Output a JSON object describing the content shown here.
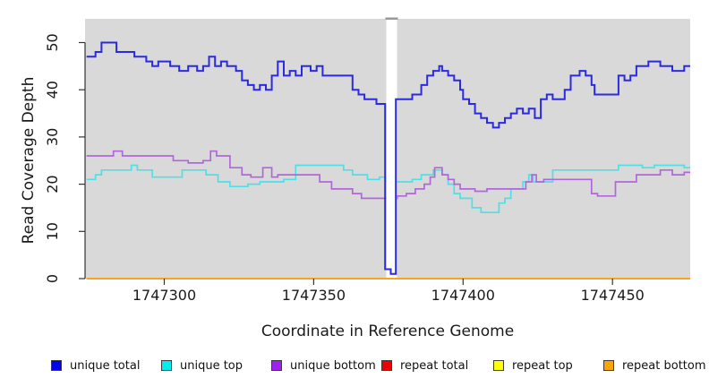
{
  "chart_data": {
    "type": "line",
    "step": "after",
    "title": "",
    "xlabel": "Coordinate in Reference Genome",
    "ylabel": "Read Coverage Depth",
    "xlim": [
      1747273.5,
      1747476
    ],
    "ylim": [
      0,
      55
    ],
    "x_ticks": [
      1747300,
      1747350,
      1747400,
      1747450
    ],
    "y_ticks": [
      0,
      10,
      20,
      30,
      40,
      50
    ],
    "grid": "off",
    "plot_bg": "#d9d9d9",
    "axis_color": "#333333",
    "legend_position": "bottom",
    "gap_band": {
      "from": 1747374.3,
      "to": 1747377.9,
      "fill": "#ffffff",
      "cap_color": "#999999"
    },
    "series": [
      {
        "name": "unique total",
        "line_color": "#2a2ae2",
        "swatch_color": "#0000ee",
        "width": 2,
        "points": [
          [
            1747274,
            47
          ],
          [
            1747277,
            48
          ],
          [
            1747279,
            50
          ],
          [
            1747284,
            48
          ],
          [
            1747290,
            47
          ],
          [
            1747294,
            46
          ],
          [
            1747296,
            45
          ],
          [
            1747298,
            46
          ],
          [
            1747302,
            45
          ],
          [
            1747305,
            44
          ],
          [
            1747308,
            45
          ],
          [
            1747311,
            44
          ],
          [
            1747313,
            45
          ],
          [
            1747315,
            47
          ],
          [
            1747317,
            45
          ],
          [
            1747319,
            46
          ],
          [
            1747321,
            45
          ],
          [
            1747324,
            44
          ],
          [
            1747326,
            42
          ],
          [
            1747328,
            41
          ],
          [
            1747330,
            40
          ],
          [
            1747332,
            41
          ],
          [
            1747334,
            40
          ],
          [
            1747336,
            43
          ],
          [
            1747338,
            46
          ],
          [
            1747340,
            43
          ],
          [
            1747342,
            44
          ],
          [
            1747344,
            43
          ],
          [
            1747346,
            45
          ],
          [
            1747349,
            44
          ],
          [
            1747351,
            45
          ],
          [
            1747353,
            43
          ],
          [
            1747363,
            40
          ],
          [
            1747365,
            39
          ],
          [
            1747367,
            38
          ],
          [
            1747371,
            37
          ],
          [
            1747373.9,
            2
          ],
          [
            1747375.8,
            1
          ],
          [
            1747377.5,
            38
          ],
          [
            1747383,
            39
          ],
          [
            1747386,
            41
          ],
          [
            1747388,
            43
          ],
          [
            1747390,
            44
          ],
          [
            1747392,
            45
          ],
          [
            1747393,
            44
          ],
          [
            1747395,
            43
          ],
          [
            1747397,
            42
          ],
          [
            1747399,
            40
          ],
          [
            1747400,
            38
          ],
          [
            1747402,
            37
          ],
          [
            1747404,
            35
          ],
          [
            1747406,
            34
          ],
          [
            1747408,
            33
          ],
          [
            1747410,
            32
          ],
          [
            1747412,
            33
          ],
          [
            1747414,
            34
          ],
          [
            1747416,
            35
          ],
          [
            1747418,
            36
          ],
          [
            1747420,
            35
          ],
          [
            1747422,
            36
          ],
          [
            1747424,
            34
          ],
          [
            1747426,
            38
          ],
          [
            1747428,
            39
          ],
          [
            1747430,
            38
          ],
          [
            1747434,
            40
          ],
          [
            1747436,
            43
          ],
          [
            1747439,
            44
          ],
          [
            1747441,
            43
          ],
          [
            1747443,
            41
          ],
          [
            1747444,
            39
          ],
          [
            1747452,
            43
          ],
          [
            1747454,
            42
          ],
          [
            1747456,
            43
          ],
          [
            1747458,
            45
          ],
          [
            1747462,
            46
          ],
          [
            1747466,
            45
          ],
          [
            1747470,
            44
          ],
          [
            1747474,
            45
          ]
        ]
      },
      {
        "name": "unique top",
        "line_color": "#4fdfe7",
        "swatch_color": "#00eeee",
        "width": 1.7,
        "points": [
          [
            1747274,
            21
          ],
          [
            1747277,
            22
          ],
          [
            1747279,
            23
          ],
          [
            1747289,
            24
          ],
          [
            1747291,
            23
          ],
          [
            1747296,
            21.5
          ],
          [
            1747306,
            23
          ],
          [
            1747314,
            22
          ],
          [
            1747318,
            20.5
          ],
          [
            1747322,
            19.5
          ],
          [
            1747328,
            20
          ],
          [
            1747332,
            20.5
          ],
          [
            1747340,
            21
          ],
          [
            1747344,
            24
          ],
          [
            1747360,
            23
          ],
          [
            1747363,
            22
          ],
          [
            1747368,
            21
          ],
          [
            1747372,
            21.5
          ],
          [
            1747374,
            20.5
          ],
          [
            1747378,
            20.5
          ],
          [
            1747383,
            21
          ],
          [
            1747386,
            22
          ],
          [
            1747390,
            23
          ],
          [
            1747393,
            22
          ],
          [
            1747395,
            20
          ],
          [
            1747397,
            18
          ],
          [
            1747399,
            17
          ],
          [
            1747403,
            15
          ],
          [
            1747406,
            14
          ],
          [
            1747412,
            16
          ],
          [
            1747414,
            17
          ],
          [
            1747416,
            19
          ],
          [
            1747420,
            20.5
          ],
          [
            1747422,
            22
          ],
          [
            1747423.5,
            20.5
          ],
          [
            1747430,
            23
          ],
          [
            1747452,
            24
          ],
          [
            1747460,
            23.5
          ],
          [
            1747464,
            24
          ],
          [
            1747474,
            23.5
          ]
        ]
      },
      {
        "name": "unique bottom",
        "line_color": "#b167d9",
        "swatch_color": "#a020f0",
        "width": 1.7,
        "points": [
          [
            1747274,
            26
          ],
          [
            1747283,
            27
          ],
          [
            1747286,
            26
          ],
          [
            1747303,
            25
          ],
          [
            1747308,
            24.5
          ],
          [
            1747313,
            25
          ],
          [
            1747315.5,
            27
          ],
          [
            1747317.5,
            26
          ],
          [
            1747322,
            23.5
          ],
          [
            1747326,
            22
          ],
          [
            1747329,
            21.5
          ],
          [
            1747333,
            23.5
          ],
          [
            1747336,
            21.5
          ],
          [
            1747338,
            22
          ],
          [
            1747352,
            20.5
          ],
          [
            1747356,
            19
          ],
          [
            1747363,
            18
          ],
          [
            1747366,
            17
          ],
          [
            1747378,
            17.5
          ],
          [
            1747381,
            18
          ],
          [
            1747384,
            19
          ],
          [
            1747387,
            20
          ],
          [
            1747389,
            21.5
          ],
          [
            1747390.5,
            23.5
          ],
          [
            1747393,
            22
          ],
          [
            1747395,
            21
          ],
          [
            1747397,
            20
          ],
          [
            1747399,
            19
          ],
          [
            1747404,
            18.5
          ],
          [
            1747408,
            19
          ],
          [
            1747421,
            20.5
          ],
          [
            1747423,
            22
          ],
          [
            1747424.5,
            20.5
          ],
          [
            1747427,
            21
          ],
          [
            1747443,
            18
          ],
          [
            1747445,
            17.5
          ],
          [
            1747451,
            20.5
          ],
          [
            1747458,
            22
          ],
          [
            1747466,
            23
          ],
          [
            1747470,
            22
          ],
          [
            1747474,
            22.5
          ]
        ]
      },
      {
        "name": "repeat total",
        "line_color": "#dd0000",
        "swatch_color": "#ee0000",
        "width": 1.5,
        "points": [
          [
            1747274,
            0
          ]
        ]
      },
      {
        "name": "repeat top",
        "line_color": "#f2f200",
        "swatch_color": "#ffff00",
        "width": 1.5,
        "points": [
          [
            1747274,
            0
          ]
        ]
      },
      {
        "name": "repeat bottom",
        "line_color": "#ff9e1a",
        "swatch_color": "#ffa500",
        "width": 1.7,
        "points": [
          [
            1747274,
            0
          ]
        ]
      }
    ]
  },
  "legend": {
    "items": [
      {
        "label": "unique total",
        "color": "#0000ee"
      },
      {
        "label": "unique top",
        "color": "#00eeee"
      },
      {
        "label": "unique bottom",
        "color": "#a020f0"
      },
      {
        "label": "repeat total",
        "color": "#ee0000"
      },
      {
        "label": "repeat top",
        "color": "#ffff00"
      },
      {
        "label": "repeat bottom",
        "color": "#ffa500"
      }
    ]
  }
}
